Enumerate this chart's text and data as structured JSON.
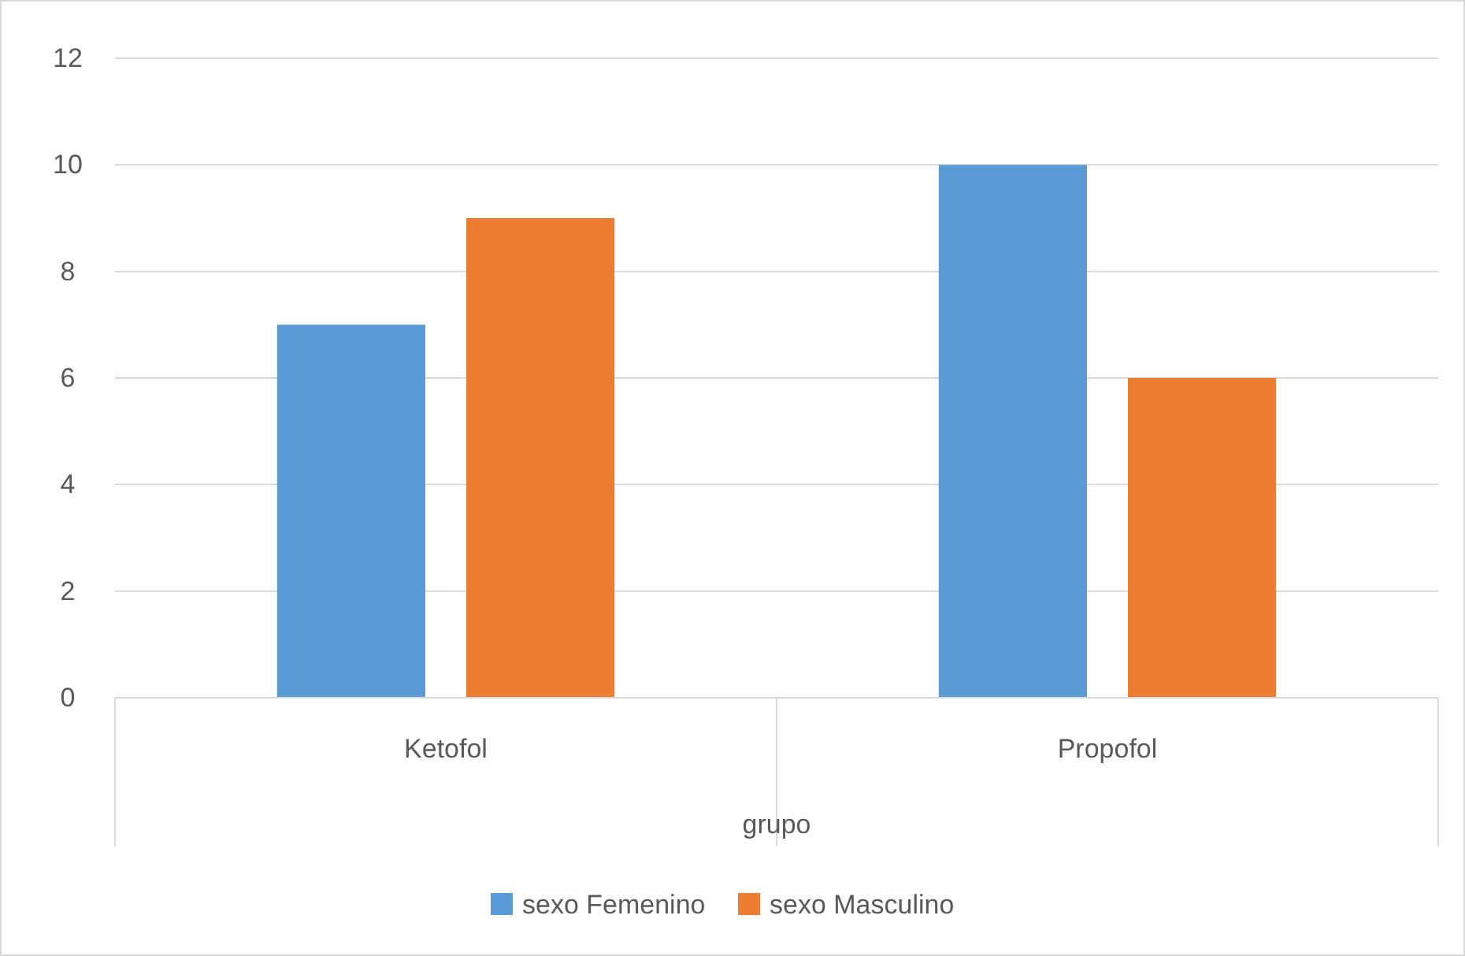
{
  "chart_data": {
    "type": "bar",
    "xlabel": "grupo",
    "categories": [
      "Ketofol",
      "Propofol"
    ],
    "series": [
      {
        "name": "sexo Femenino",
        "color": "#5b9bd5",
        "values": [
          7,
          10
        ]
      },
      {
        "name": "sexo Masculino",
        "color": "#ed7d31",
        "values": [
          9,
          6
        ]
      }
    ],
    "ylim": [
      0,
      12
    ],
    "yticks": [
      0,
      2,
      4,
      6,
      8,
      10,
      12
    ],
    "grid": "y",
    "legend": "bottom"
  }
}
